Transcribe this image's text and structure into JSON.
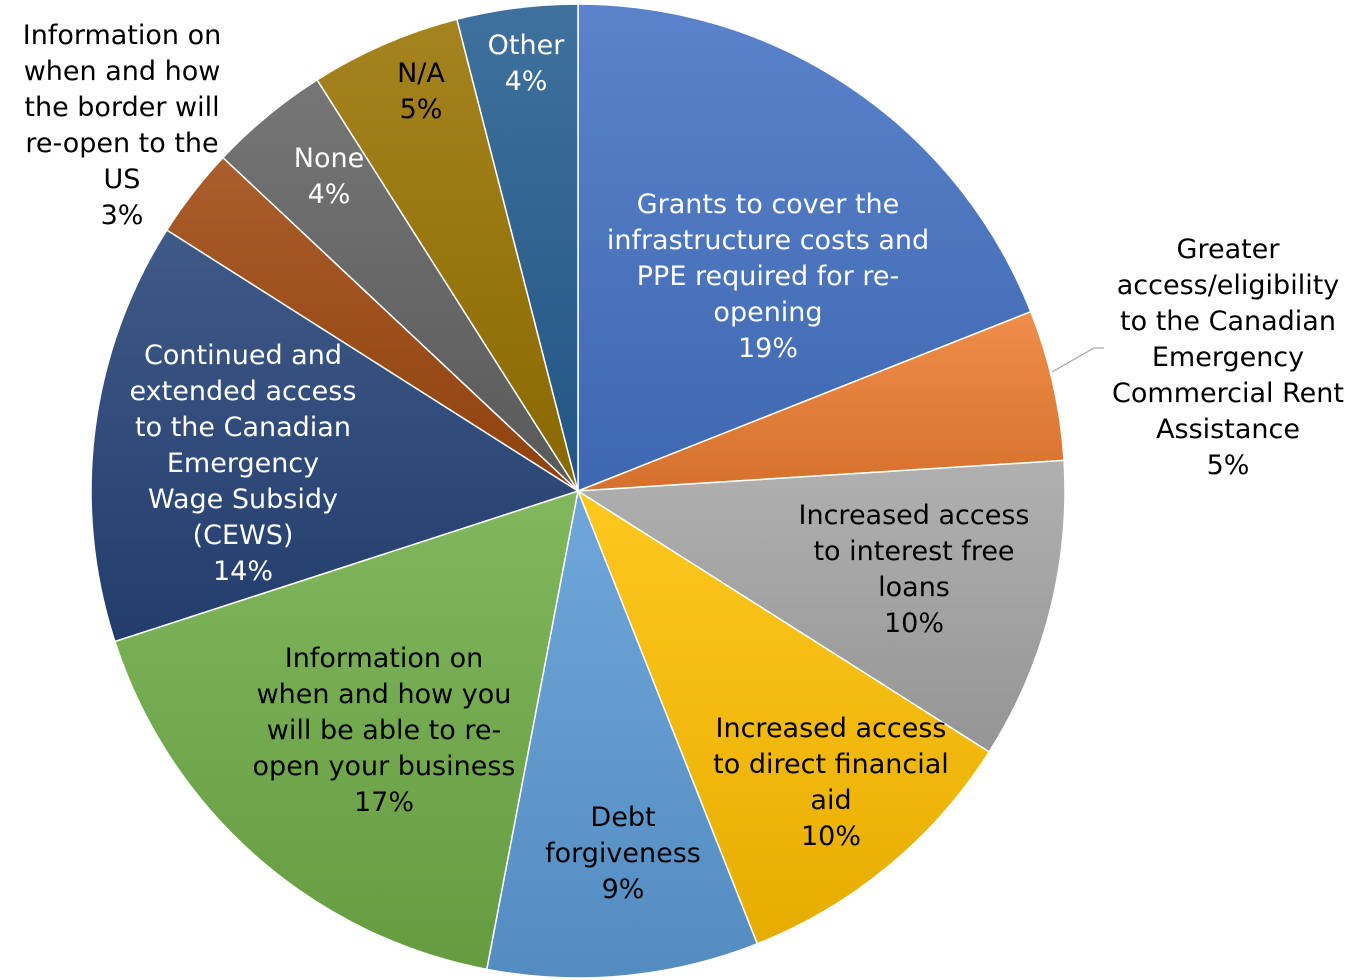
{
  "chart_data": {
    "type": "pie",
    "title": "",
    "slices": [
      {
        "label": [
          "Grants to cover the",
          "infrastructure costs and",
          "PPE required for re-",
          "opening"
        ],
        "value": 19,
        "pct": "19%",
        "color": "#4472C4",
        "label_color": "#ffffff"
      },
      {
        "label": [
          "Greater",
          "access/eligibility",
          "to the Canadian",
          "Emergency",
          "Commercial Rent",
          "Assistance"
        ],
        "value": 5,
        "pct": "5%",
        "color": "#ED7D31",
        "label_color": "#000000"
      },
      {
        "label": [
          "Increased access",
          "to interest free",
          "loans"
        ],
        "value": 10,
        "pct": "10%",
        "color": "#A5A5A5",
        "label_color": "#000000"
      },
      {
        "label": [
          "Increased access",
          "to direct financial",
          "aid"
        ],
        "value": 10,
        "pct": "10%",
        "color": "#FFC000",
        "label_color": "#000000"
      },
      {
        "label": [
          "Debt",
          "forgiveness"
        ],
        "value": 9,
        "pct": "9%",
        "color": "#5B9BD5",
        "label_color": "#000000"
      },
      {
        "label": [
          "Information on",
          "when and how you",
          "will be able to re-",
          "open your business"
        ],
        "value": 17,
        "pct": "17%",
        "color": "#70AD47",
        "label_color": "#000000"
      },
      {
        "label": [
          "Continued and",
          "extended access",
          "to the Canadian",
          "Emergency",
          "Wage Subsidy",
          "(CEWS)"
        ],
        "value": 14,
        "pct": "14%",
        "color": "#264478",
        "label_color": "#ffffff"
      },
      {
        "label": [
          "Information on",
          "when and how",
          "the border will",
          "re-open to the",
          "US"
        ],
        "value": 3,
        "pct": "3%",
        "color": "#9E480E",
        "label_color": "#000000"
      },
      {
        "label": [
          "None"
        ],
        "value": 4,
        "pct": "4%",
        "color": "#636363",
        "label_color": "#ffffff"
      },
      {
        "label": [
          "N/A"
        ],
        "value": 5,
        "pct": "5%",
        "color": "#997300",
        "label_color": "#000000"
      },
      {
        "label": [
          "Other"
        ],
        "value": 4,
        "pct": "4%",
        "color": "#255E91",
        "label_color": "#ffffff"
      }
    ]
  }
}
